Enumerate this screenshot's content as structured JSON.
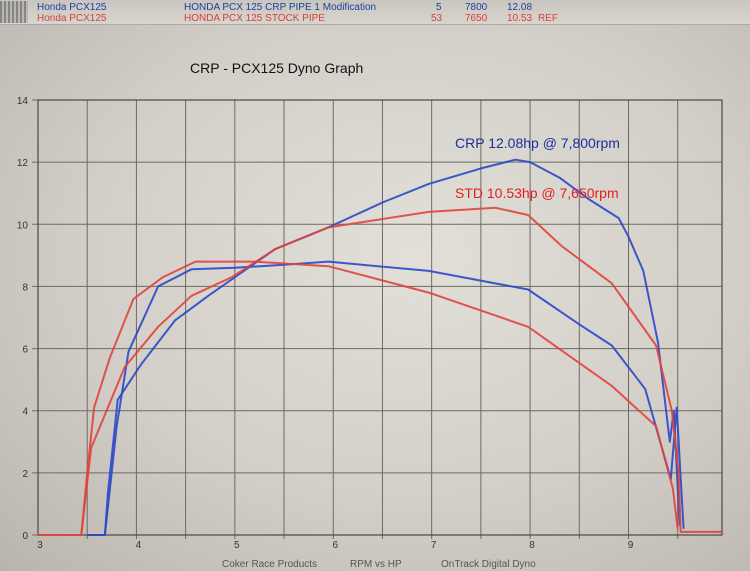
{
  "header": {
    "rows": [
      {
        "vehicle": "Honda PCX125",
        "description": "HONDA PCX 125 CRP PIPE 1 Modification",
        "run": "5",
        "rpm": "7800",
        "hp": "12.08",
        "flag": "",
        "color": "#1d3fa3"
      },
      {
        "vehicle": "Honda PCX125",
        "description": "HONDA PCX 125 STOCK PIPE",
        "run": "53",
        "rpm": "7650",
        "hp": "10.53",
        "flag": "REF",
        "color": "#d8403a"
      }
    ]
  },
  "footer": {
    "company": "Coker Race Products",
    "graph_type": "RPM vs HP",
    "software": "OnTrack Digital Dyno"
  },
  "chart_data": {
    "type": "line",
    "title": "CRP - PCX125 Dyno Graph",
    "xlabel": "",
    "ylabel": "",
    "xlim": [
      3,
      9.95
    ],
    "ylim": [
      0,
      14
    ],
    "x_ticks": [
      "3",
      "4",
      "5",
      "6",
      "7",
      "8",
      "9"
    ],
    "y_ticks": [
      "0",
      "2",
      "4",
      "6",
      "8",
      "10",
      "12",
      "14"
    ],
    "grid": true,
    "annotations": [
      {
        "text": "CRP 12.08hp @ 7,800rpm",
        "color": "#1a2fa0"
      },
      {
        "text": "STD 10.53hp @ 7,650rpm",
        "color": "#e02020"
      }
    ],
    "series": [
      {
        "name": "HONDA PCX 125 CRP PIPE 1 Modification",
        "color": "#2a48c8",
        "curves": [
          {
            "x": [
              3.5,
              3.68,
              3.71,
              3.81,
              4.05,
              4.39,
              4.73,
              5.07,
              5.41,
              5.95,
              6.5,
              6.97,
              7.5,
              7.85,
              8.0,
              8.3,
              8.6,
              8.9,
              9.0,
              9.15,
              9.3,
              9.42,
              9.46,
              9.52
            ],
            "y": [
              0,
              0,
              1.35,
              4.35,
              5.5,
              6.9,
              7.7,
              8.45,
              9.2,
              9.9,
              10.7,
              11.3,
              11.8,
              12.08,
              12.0,
              11.5,
              10.8,
              10.2,
              9.6,
              8.5,
              6.2,
              3.0,
              4.0,
              0.3
            ]
          },
          {
            "x": [
              3.68,
              3.8,
              3.92,
              4.22,
              4.56,
              5.0,
              5.5,
              5.95,
              6.97,
              7.98,
              8.49,
              8.83,
              9.17,
              9.43,
              9.49,
              9.56
            ],
            "y": [
              0,
              3.5,
              5.9,
              8.0,
              8.55,
              8.6,
              8.7,
              8.8,
              8.5,
              7.9,
              6.8,
              6.1,
              4.7,
              1.8,
              4.1,
              0.2
            ]
          }
        ]
      },
      {
        "name": "HONDA PCX 125 STOCK PIPE",
        "color": "#e0443c",
        "curves": [
          {
            "x": [
              3.44,
              3.54,
              3.88,
              4.22,
              4.56,
              4.97,
              5.41,
              5.95,
              6.97,
              7.65,
              7.98,
              8.32,
              8.83,
              9.28,
              9.44,
              9.51,
              9.53,
              9.6,
              9.95
            ],
            "y": [
              0,
              2.8,
              5.4,
              6.7,
              7.7,
              8.3,
              9.2,
              9.9,
              10.4,
              10.53,
              10.3,
              9.3,
              8.1,
              6.1,
              4.0,
              2.0,
              0.1,
              0.1,
              0.1
            ]
          },
          {
            "x": [
              3.0,
              3.44,
              3.5,
              3.57,
              3.73,
              3.97,
              4.27,
              4.6,
              5.2,
              5.95,
              6.97,
              7.98,
              8.83,
              9.28,
              9.45,
              9.5
            ],
            "y": [
              0,
              0,
              2.0,
              4.1,
              5.7,
              7.6,
              8.3,
              8.8,
              8.8,
              8.65,
              7.8,
              6.7,
              4.8,
              3.5,
              1.5,
              0.2
            ]
          }
        ]
      }
    ]
  }
}
